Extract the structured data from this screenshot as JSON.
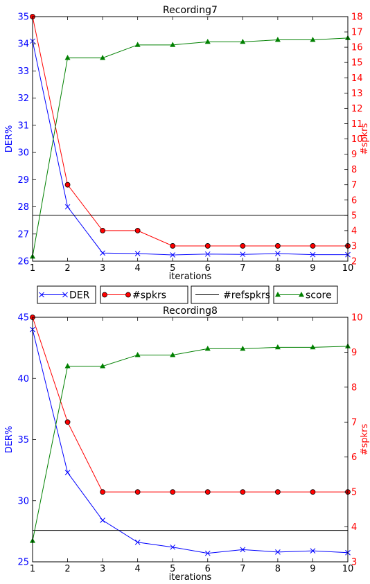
{
  "legend": {
    "placement": "between-charts",
    "entries": [
      {
        "label": "DER",
        "color": "#0000ff",
        "marker": "x"
      },
      {
        "label": "#spkrs",
        "color": "#ff0000",
        "marker": "circle"
      },
      {
        "label": "#refspkrs",
        "color": "#000000",
        "marker": "none"
      },
      {
        "label": "score",
        "color": "#008000",
        "marker": "triangle"
      }
    ]
  },
  "chart_data": [
    {
      "type": "line",
      "title": "Recording7",
      "xlabel": "iterations",
      "ylabel_left": "DER%",
      "ylabel_right": "#spkrs",
      "x": [
        1,
        2,
        3,
        4,
        5,
        6,
        7,
        8,
        9,
        10
      ],
      "xlim": [
        1,
        10
      ],
      "ylim_left": [
        26,
        35
      ],
      "ylim_right": [
        2,
        18
      ],
      "yticks_left": [
        26,
        27,
        28,
        29,
        30,
        31,
        32,
        33,
        34,
        35
      ],
      "yticks_right": [
        2,
        3,
        4,
        5,
        6,
        7,
        8,
        9,
        10,
        11,
        12,
        13,
        14,
        15,
        16,
        17,
        18
      ],
      "left_axis_color": "#0000ff",
      "right_axis_color": "#ff0000",
      "series": [
        {
          "name": "DER",
          "axis": "left",
          "color": "#0000ff",
          "marker": "x",
          "values": [
            34.1,
            28.0,
            26.3,
            26.28,
            26.23,
            26.26,
            26.25,
            26.28,
            26.24,
            26.24
          ]
        },
        {
          "name": "#spkrs",
          "axis": "right",
          "color": "#ff0000",
          "marker": "circle",
          "values": [
            18,
            7,
            4,
            4,
            3,
            3,
            3,
            3,
            3,
            3
          ]
        },
        {
          "name": "#refspkrs",
          "axis": "right",
          "color": "#000000",
          "marker": "none",
          "values": [
            5,
            5,
            5,
            5,
            5,
            5,
            5,
            5,
            5,
            5
          ]
        },
        {
          "name": "score",
          "axis": "right",
          "color": "#008000",
          "marker": "triangle",
          "values": [
            2.3,
            15.3,
            15.3,
            16.15,
            16.15,
            16.35,
            16.35,
            16.48,
            16.48,
            16.6
          ]
        }
      ]
    },
    {
      "type": "line",
      "title": "Recording8",
      "xlabel": "iterations",
      "ylabel_left": "DER%",
      "ylabel_right": "#spkrs",
      "x": [
        1,
        2,
        3,
        4,
        5,
        6,
        7,
        8,
        9,
        10
      ],
      "xlim": [
        1,
        10
      ],
      "ylim_left": [
        25,
        45
      ],
      "ylim_right": [
        3,
        10
      ],
      "yticks_left": [
        25,
        30,
        35,
        40,
        45
      ],
      "yticks_right": [
        3,
        4,
        5,
        6,
        7,
        8,
        9,
        10
      ],
      "left_axis_color": "#0000ff",
      "right_axis_color": "#ff0000",
      "series": [
        {
          "name": "DER",
          "axis": "left",
          "color": "#0000ff",
          "marker": "x",
          "values": [
            44.0,
            32.3,
            28.4,
            26.6,
            26.2,
            25.7,
            26.0,
            25.8,
            25.9,
            25.75
          ]
        },
        {
          "name": "#spkrs",
          "axis": "right",
          "color": "#ff0000",
          "marker": "circle",
          "values": [
            10,
            7,
            5,
            5,
            5,
            5,
            5,
            5,
            5,
            5
          ]
        },
        {
          "name": "#refspkrs",
          "axis": "right",
          "color": "#000000",
          "marker": "none",
          "values": [
            3.9,
            3.9,
            3.9,
            3.9,
            3.9,
            3.9,
            3.9,
            3.9,
            3.9,
            3.9
          ]
        },
        {
          "name": "score",
          "axis": "right",
          "color": "#008000",
          "marker": "triangle",
          "values": [
            3.6,
            8.6,
            8.6,
            8.92,
            8.92,
            9.1,
            9.1,
            9.14,
            9.14,
            9.17
          ]
        }
      ]
    }
  ]
}
